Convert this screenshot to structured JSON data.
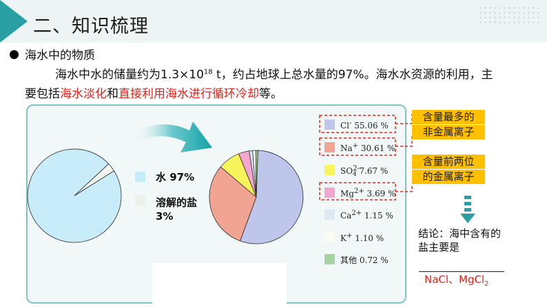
{
  "header": {
    "title": "二、知识梳理"
  },
  "section": {
    "heading": "海水中的物质"
  },
  "paragraph": {
    "line1_pre": "海水中水的储量约为1.3×10",
    "line1_sup": "18",
    "line1_post": " t，约占地球上总水量的97%。海水水资源的利用，主",
    "line2_pre": "要包括",
    "line2_red1": "海水淡化",
    "line2_mid": "和",
    "line2_red2": "直接利用海水进行循环冷却",
    "line2_post": "等。"
  },
  "water_legend": [
    {
      "label": "水 97%",
      "color": "#c9ecfb"
    },
    {
      "label": "溶解的盐",
      "label2": "3%",
      "color": "#eef0ec"
    }
  ],
  "colors": {
    "accent": "#2a9fa3",
    "header_bg": "#eef3f3",
    "figure_border": "#7fc5c3",
    "red": "#e2231a",
    "highlight": "#ffc000"
  },
  "chart_data": [
    {
      "type": "pie",
      "categories": [
        "水",
        "溶解的盐"
      ],
      "values": [
        97,
        3
      ],
      "colors": [
        "#c9ecfb",
        "#f3f5f1"
      ]
    },
    {
      "type": "pie",
      "categories": [
        "Cl-",
        "Na+",
        "SO4 2-",
        "Mg2+",
        "Ca2+",
        "K+",
        "其他"
      ],
      "values": [
        55.06,
        30.61,
        7.67,
        3.69,
        1.15,
        1.1,
        0.72
      ],
      "colors": [
        "#bfc6ec",
        "#f1a491",
        "#f8f45c",
        "#f3a6cf",
        "#dde8f3",
        "#fbfbf4",
        "#a6d3a0"
      ],
      "legend": [
        {
          "ion": "Cl",
          "sup": "-",
          "sub": "",
          "value": "55.06 %"
        },
        {
          "ion": "Na",
          "sup": "+",
          "sub": "",
          "value": "30.61 %"
        },
        {
          "ion": "SO",
          "sup": "2-",
          "sub": "4",
          "value": "7.67 %"
        },
        {
          "ion": "Mg",
          "sup": "2+",
          "sub": "",
          "value": "3.69 %"
        },
        {
          "ion": "Ca",
          "sup": "2+",
          "sub": "",
          "value": "1.15 %"
        },
        {
          "ion": "K",
          "sup": "+",
          "sub": "",
          "value": "1.10 %"
        },
        {
          "ion": "其他",
          "sup": "",
          "sub": "",
          "value": "0.72 %"
        }
      ]
    }
  ],
  "callouts": {
    "nonmetal_line1": "含量最多的",
    "nonmetal_line2": "非金属离子",
    "metal_line1": "含量前两位",
    "metal_line2": "的金属离子"
  },
  "conclusion": {
    "line1": "结论：海中含有的",
    "line2": "盐主要是",
    "answer": "NaCl、MgCl",
    "answer_sub": "2"
  }
}
